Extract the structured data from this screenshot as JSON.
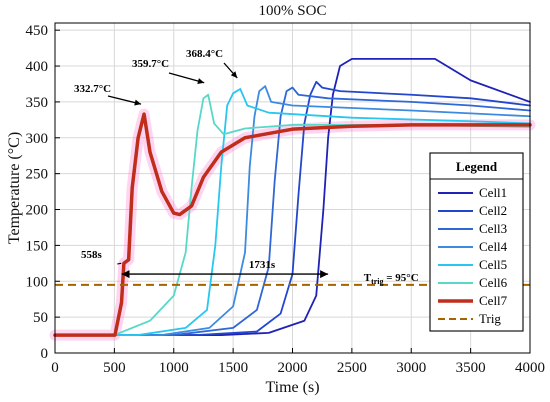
{
  "chart_data": {
    "type": "line",
    "title": "100% SOC",
    "xlabel": "Time (s)",
    "ylabel": "Temperature (°C)",
    "xlim": [
      0,
      4000
    ],
    "ylim": [
      0,
      460
    ],
    "xticks": [
      "0",
      "500",
      "1000",
      "1500",
      "2000",
      "2500",
      "3000",
      "3500",
      "4000"
    ],
    "yticks": [
      "0",
      "50",
      "100",
      "150",
      "200",
      "250",
      "300",
      "350",
      "400",
      "450"
    ],
    "grid": true,
    "legend": {
      "title": "Legend",
      "placement": "right"
    },
    "series": [
      {
        "name": "Cell1",
        "color": "#1f22b5",
        "points": [
          [
            0,
            25
          ],
          [
            1400,
            25
          ],
          [
            1800,
            28
          ],
          [
            2100,
            45
          ],
          [
            2200,
            80
          ],
          [
            2260,
            200
          ],
          [
            2300,
            300
          ],
          [
            2340,
            360
          ],
          [
            2400,
            400
          ],
          [
            2500,
            410
          ],
          [
            3000,
            410
          ],
          [
            3200,
            410
          ],
          [
            3500,
            380
          ],
          [
            4000,
            350
          ]
        ]
      },
      {
        "name": "Cell2",
        "color": "#2247cc",
        "points": [
          [
            0,
            25
          ],
          [
            1200,
            25
          ],
          [
            1700,
            30
          ],
          [
            1900,
            55
          ],
          [
            2000,
            110
          ],
          [
            2050,
            220
          ],
          [
            2100,
            320
          ],
          [
            2150,
            360
          ],
          [
            2200,
            378
          ],
          [
            2250,
            370
          ],
          [
            2400,
            365
          ],
          [
            3000,
            360
          ],
          [
            3500,
            355
          ],
          [
            4000,
            345
          ]
        ]
      },
      {
        "name": "Cell3",
        "color": "#2f67d6",
        "points": [
          [
            0,
            25
          ],
          [
            1000,
            25
          ],
          [
            1500,
            35
          ],
          [
            1700,
            60
          ],
          [
            1800,
            120
          ],
          [
            1850,
            240
          ],
          [
            1900,
            330
          ],
          [
            1950,
            365
          ],
          [
            2000,
            370
          ],
          [
            2050,
            360
          ],
          [
            2300,
            355
          ],
          [
            3000,
            350
          ],
          [
            3500,
            345
          ],
          [
            4000,
            338
          ]
        ]
      },
      {
        "name": "Cell4",
        "color": "#3c8be0",
        "points": [
          [
            0,
            25
          ],
          [
            900,
            25
          ],
          [
            1300,
            35
          ],
          [
            1500,
            65
          ],
          [
            1600,
            140
          ],
          [
            1640,
            260
          ],
          [
            1680,
            330
          ],
          [
            1720,
            365
          ],
          [
            1770,
            372
          ],
          [
            1820,
            350
          ],
          [
            2000,
            345
          ],
          [
            3000,
            338
          ],
          [
            3500,
            334
          ],
          [
            4000,
            330
          ]
        ]
      },
      {
        "name": "Cell5",
        "color": "#28c7f0",
        "points": [
          [
            0,
            25
          ],
          [
            700,
            25
          ],
          [
            1100,
            35
          ],
          [
            1280,
            60
          ],
          [
            1350,
            150
          ],
          [
            1400,
            260
          ],
          [
            1450,
            345
          ],
          [
            1500,
            362
          ],
          [
            1560,
            368
          ],
          [
            1620,
            345
          ],
          [
            1800,
            335
          ],
          [
            2500,
            328
          ],
          [
            3500,
            323
          ],
          [
            4000,
            320
          ]
        ]
      },
      {
        "name": "Cell6",
        "color": "#58d8c8",
        "points": [
          [
            0,
            25
          ],
          [
            500,
            25
          ],
          [
            800,
            45
          ],
          [
            1000,
            80
          ],
          [
            1100,
            140
          ],
          [
            1150,
            230
          ],
          [
            1200,
            310
          ],
          [
            1250,
            355
          ],
          [
            1290,
            360
          ],
          [
            1340,
            320
          ],
          [
            1420,
            305
          ],
          [
            1600,
            313
          ],
          [
            2000,
            318
          ],
          [
            3000,
            318
          ],
          [
            4000,
            315
          ]
        ]
      },
      {
        "name": "Cell7",
        "color": "#bf2d1b",
        "points": [
          [
            0,
            25
          ],
          [
            480,
            25
          ],
          [
            505,
            25
          ],
          [
            560,
            70
          ],
          [
            580,
            125
          ],
          [
            620,
            130
          ],
          [
            650,
            230
          ],
          [
            700,
            300
          ],
          [
            750,
            333
          ],
          [
            800,
            280
          ],
          [
            900,
            225
          ],
          [
            1000,
            195
          ],
          [
            1050,
            193
          ],
          [
            1150,
            205
          ],
          [
            1250,
            245
          ],
          [
            1400,
            280
          ],
          [
            1600,
            300
          ],
          [
            2000,
            312
          ],
          [
            2500,
            316
          ],
          [
            3000,
            318
          ],
          [
            4000,
            318
          ]
        ]
      }
    ],
    "trig": {
      "name": "Trig",
      "y": 95,
      "color": "#a66400",
      "label_main": "T",
      "label_sub": "trig",
      "label_tail": " = 95°C"
    },
    "annotations": [
      {
        "text": "332.7°C",
        "x": 750,
        "y": 333
      },
      {
        "text": "359.7°C",
        "x": 1290,
        "y": 360
      },
      {
        "text": "368.4°C",
        "x": 1560,
        "y": 368
      },
      {
        "text": "558s",
        "x": 558,
        "y": 125
      },
      {
        "text": "1731s",
        "x": 1110,
        "y": 110
      }
    ]
  }
}
